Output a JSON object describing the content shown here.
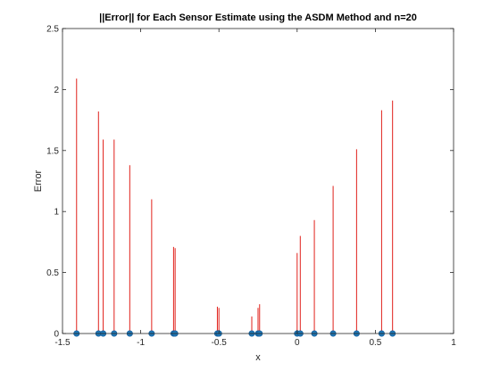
{
  "chart_data": {
    "type": "stem",
    "title": "||Error|| for Each Sensor Estimate using the ASDM Method and n=20",
    "xlabel": "x",
    "ylabel": "Error",
    "xlim": [
      -1.5,
      1
    ],
    "ylim": [
      0,
      2.5
    ],
    "xticks": [
      -1.5,
      -1,
      -0.5,
      0,
      0.5,
      1
    ],
    "xtick_labels": [
      "-1.5",
      "-1",
      "-0.5",
      "0",
      "0.5",
      "1"
    ],
    "yticks": [
      0,
      0.5,
      1,
      1.5,
      2,
      2.5
    ],
    "ytick_labels": [
      "0",
      "0.5",
      "1",
      "1.5",
      "2",
      "2.5"
    ],
    "grid": false,
    "series": [
      {
        "style": "stem",
        "x": [
          -1.41,
          -1.27,
          -1.24,
          -1.17,
          -1.07,
          -0.93,
          -0.79,
          -0.78,
          -0.51,
          -0.5,
          -0.29,
          -0.25,
          -0.24,
          0.0,
          0.02,
          0.11,
          0.23,
          0.38,
          0.54,
          0.61
        ],
        "y": [
          2.09,
          1.82,
          1.59,
          1.59,
          1.38,
          1.1,
          0.71,
          0.7,
          0.22,
          0.21,
          0.14,
          0.21,
          0.24,
          0.66,
          0.8,
          0.93,
          1.21,
          1.51,
          1.83,
          1.91
        ]
      },
      {
        "style": "markers",
        "x": [
          -1.41,
          -1.27,
          -1.24,
          -1.17,
          -1.07,
          -0.93,
          -0.79,
          -0.78,
          -0.51,
          -0.5,
          -0.29,
          -0.25,
          -0.24,
          0.0,
          0.02,
          0.11,
          0.23,
          0.38,
          0.54,
          0.61
        ],
        "y": [
          0,
          0,
          0,
          0,
          0,
          0,
          0,
          0,
          0,
          0,
          0,
          0,
          0,
          0,
          0,
          0,
          0,
          0,
          0,
          0
        ]
      }
    ],
    "colors": {
      "stem": "#e0211b",
      "marker": "#1f77b4",
      "axis": "#262626"
    }
  }
}
